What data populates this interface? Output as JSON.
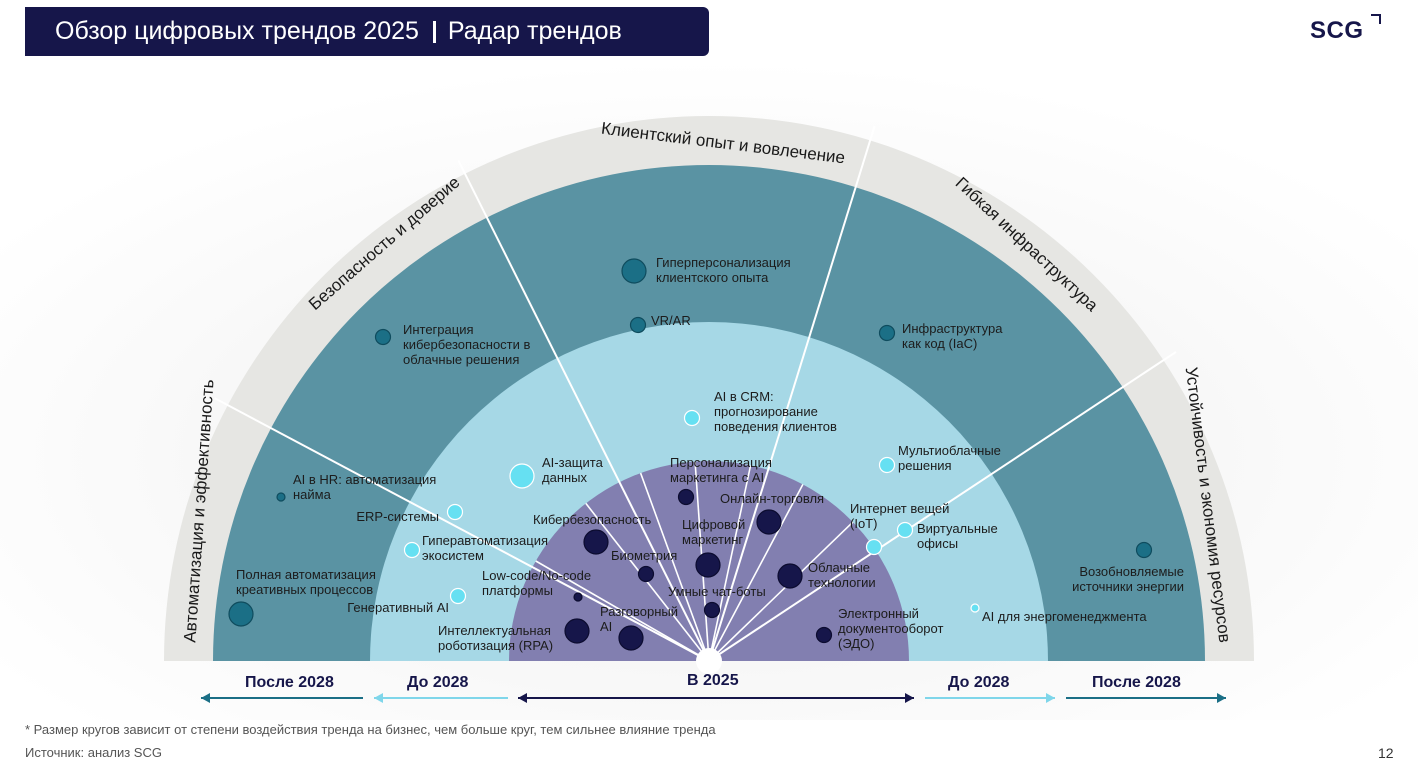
{
  "header": {
    "title": "Обзор цифровых трендов 2025",
    "subtitle": "Радар трендов",
    "logo": "SCG"
  },
  "colors": {
    "navy": "#16164a",
    "ring_outer": "#5a93a3",
    "ring_middle": "#a6d8e6",
    "ring_inner": "#827fb0",
    "band": "#e6e6e3"
  },
  "sectors": [
    "Автоматизация и эффективность",
    "Безопасность и доверие",
    "Клиентский опыт и вовлечение",
    "Гибкая инфраструктура",
    "Устойчивость и экономия ресурсов"
  ],
  "trends": [
    {
      "label": "Гиперперсонализация\nклиентского опыта",
      "ring": "После 2028",
      "size": "large"
    },
    {
      "label": "VR/AR",
      "ring": "После 2028",
      "size": "small"
    },
    {
      "label": "Интеграция\nкибербезопасности в\nоблачные решения",
      "ring": "После 2028",
      "size": "small"
    },
    {
      "label": "Инфраструктура\nкак код (IaC)",
      "ring": "После 2028",
      "size": "small"
    },
    {
      "label": "AI в HR: автоматизация\nнайма",
      "ring": "После 2028",
      "size": "tiny"
    },
    {
      "label": "Полная автоматизация\nкреативных процессов",
      "ring": "После 2028",
      "size": "large"
    },
    {
      "label": "Возобновляемые\nисточники энергии",
      "ring": "После 2028",
      "size": "small"
    },
    {
      "label": "AI в CRM:\nпрогнозирование\nповедения клиентов",
      "ring": "До 2028",
      "size": "small"
    },
    {
      "label": "AI-защита\nданных",
      "ring": "До 2028",
      "size": "large"
    },
    {
      "label": "Мультиоблачные\nрешения",
      "ring": "До 2028",
      "size": "small"
    },
    {
      "label": "ERP-системы",
      "ring": "До 2028",
      "size": "small"
    },
    {
      "label": "Гиперавтоматизация\nэкосистем",
      "ring": "До 2028",
      "size": "small"
    },
    {
      "label": "Генеративный AI",
      "ring": "До 2028",
      "size": "small"
    },
    {
      "label": "Интернет вещей\n(IoT)",
      "ring": "До 2028",
      "size": "small"
    },
    {
      "label": "Виртуальные\nофисы",
      "ring": "До 2028",
      "size": "small"
    },
    {
      "label": "AI для энергоменеджмента",
      "ring": "До 2028",
      "size": "tiny"
    },
    {
      "label": "Персонализация\nмаркетинга с AI",
      "ring": "В 2025",
      "size": "small"
    },
    {
      "label": "Онлайн-торговля",
      "ring": "В 2025",
      "size": "large"
    },
    {
      "label": "Кибербезопасность",
      "ring": "В 2025",
      "size": "large"
    },
    {
      "label": "Цифровой\nмаркетинг",
      "ring": "В 2025",
      "size": "large"
    },
    {
      "label": "Биометрия",
      "ring": "В 2025",
      "size": "small"
    },
    {
      "label": "Облачные\nтехнологии",
      "ring": "В 2025",
      "size": "large"
    },
    {
      "label": "Low-code/No-code\nплатформы",
      "ring": "В 2025",
      "size": "tiny"
    },
    {
      "label": "Умные чат-боты",
      "ring": "В 2025",
      "size": "small"
    },
    {
      "label": "Разговорный\nAI",
      "ring": "В 2025",
      "size": "large"
    },
    {
      "label": "Электронный\nдокументооборот\n(ЭДО)",
      "ring": "В 2025",
      "size": "small"
    },
    {
      "label": "Интеллектуальная\nроботизация (RPA)",
      "ring": "В 2025",
      "size": "large"
    }
  ],
  "timeline": {
    "left_outer": "После 2028",
    "left_middle": "До 2028",
    "center": "В 2025",
    "right_middle": "До 2028",
    "right_outer": "После 2028"
  },
  "footnote": "* Размер кругов зависит от степени воздействия тренда на бизнес, чем больше круг, тем сильнее влияние тренда",
  "source": "Источник: анализ SCG",
  "page_number": "12"
}
